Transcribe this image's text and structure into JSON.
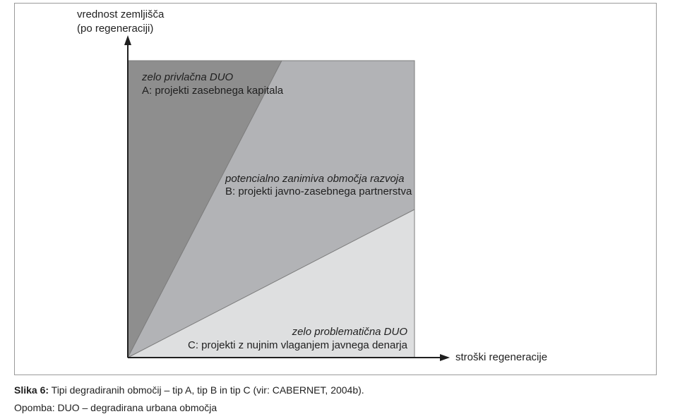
{
  "diagram": {
    "y_axis_label_line1": "vrednost zemljišča",
    "y_axis_label_line2": "(po regeneraciji)",
    "x_axis_label": "stroški regeneracije",
    "zone_a": {
      "title": "zelo privlačna DUO",
      "subtitle": "A: projekti zasebnega kapitala",
      "color": "#8e8e8e"
    },
    "zone_b": {
      "title": "potencialno zanimiva območja razvoja",
      "subtitle": "B: projekti javno-zasebnega partnerstva",
      "color": "#b2b3b6"
    },
    "zone_c": {
      "title": "zelo problematična DUO",
      "subtitle": "C: projekti z nujnim vlaganjem javnega denarja",
      "color": "#dedfe0"
    }
  },
  "caption": {
    "label": "Slika 6:",
    "text": " Tipi degradiranih območij – tip A, tip B in tip C (vir: CABERNET, 2004b)."
  },
  "note": {
    "text": "Opomba: DUO – degradirana urbana območja"
  }
}
